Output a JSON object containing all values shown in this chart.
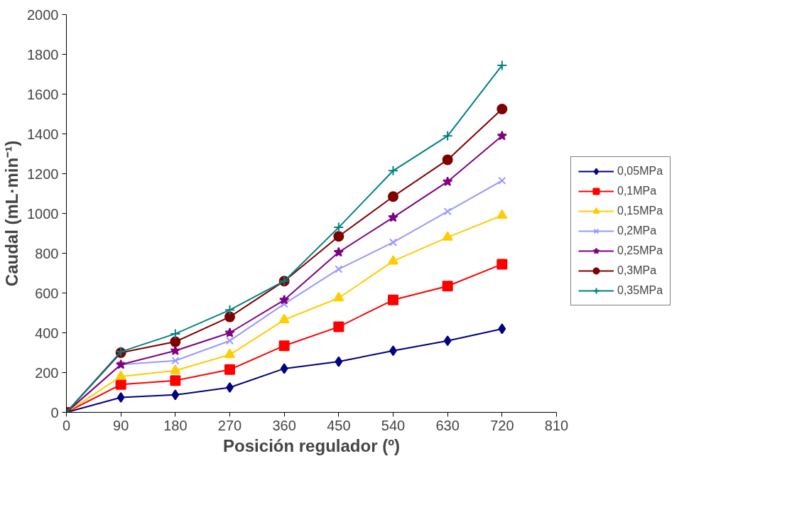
{
  "chart_data": {
    "type": "line",
    "xlabel": "Posición regulador (º)",
    "ylabel": "Caudal (mL·min⁻¹)",
    "x": [
      0,
      90,
      180,
      270,
      360,
      450,
      540,
      630,
      720
    ],
    "xlim": [
      0,
      810
    ],
    "xticks": [
      0,
      90,
      180,
      270,
      360,
      450,
      540,
      630,
      720,
      810
    ],
    "ylim": [
      0,
      2000
    ],
    "yticks": [
      0,
      200,
      400,
      600,
      800,
      1000,
      1200,
      1400,
      1600,
      1800,
      2000
    ],
    "grid": false,
    "legend": "right",
    "line_style": "solid",
    "series": [
      {
        "name": "0,05MPa",
        "color": "#000080",
        "marker": "diamond",
        "values": [
          0,
          75,
          88,
          125,
          220,
          255,
          310,
          360,
          420
        ]
      },
      {
        "name": "0,1MPa",
        "color": "#ff0000",
        "marker": "square",
        "values": [
          0,
          140,
          160,
          215,
          335,
          430,
          565,
          635,
          745
        ]
      },
      {
        "name": "0,15MPa",
        "color": "#ffcc00",
        "marker": "triangle",
        "values": [
          0,
          180,
          210,
          290,
          465,
          575,
          760,
          880,
          990
        ]
      },
      {
        "name": "0,2MPa",
        "color": "#9999ff",
        "marker": "x",
        "values": [
          0,
          240,
          260,
          360,
          545,
          720,
          855,
          1010,
          1165
        ]
      },
      {
        "name": "0,25MPa",
        "color": "#800080",
        "marker": "star",
        "values": [
          0,
          240,
          310,
          400,
          565,
          805,
          980,
          1160,
          1390
        ]
      },
      {
        "name": "0,3MPa",
        "color": "#800000",
        "marker": "circle",
        "values": [
          0,
          300,
          355,
          480,
          660,
          885,
          1085,
          1270,
          1525
        ]
      },
      {
        "name": "0,35MPa",
        "color": "#008080",
        "marker": "cross",
        "values": [
          0,
          305,
          395,
          515,
          660,
          930,
          1215,
          1390,
          1745
        ]
      }
    ]
  }
}
